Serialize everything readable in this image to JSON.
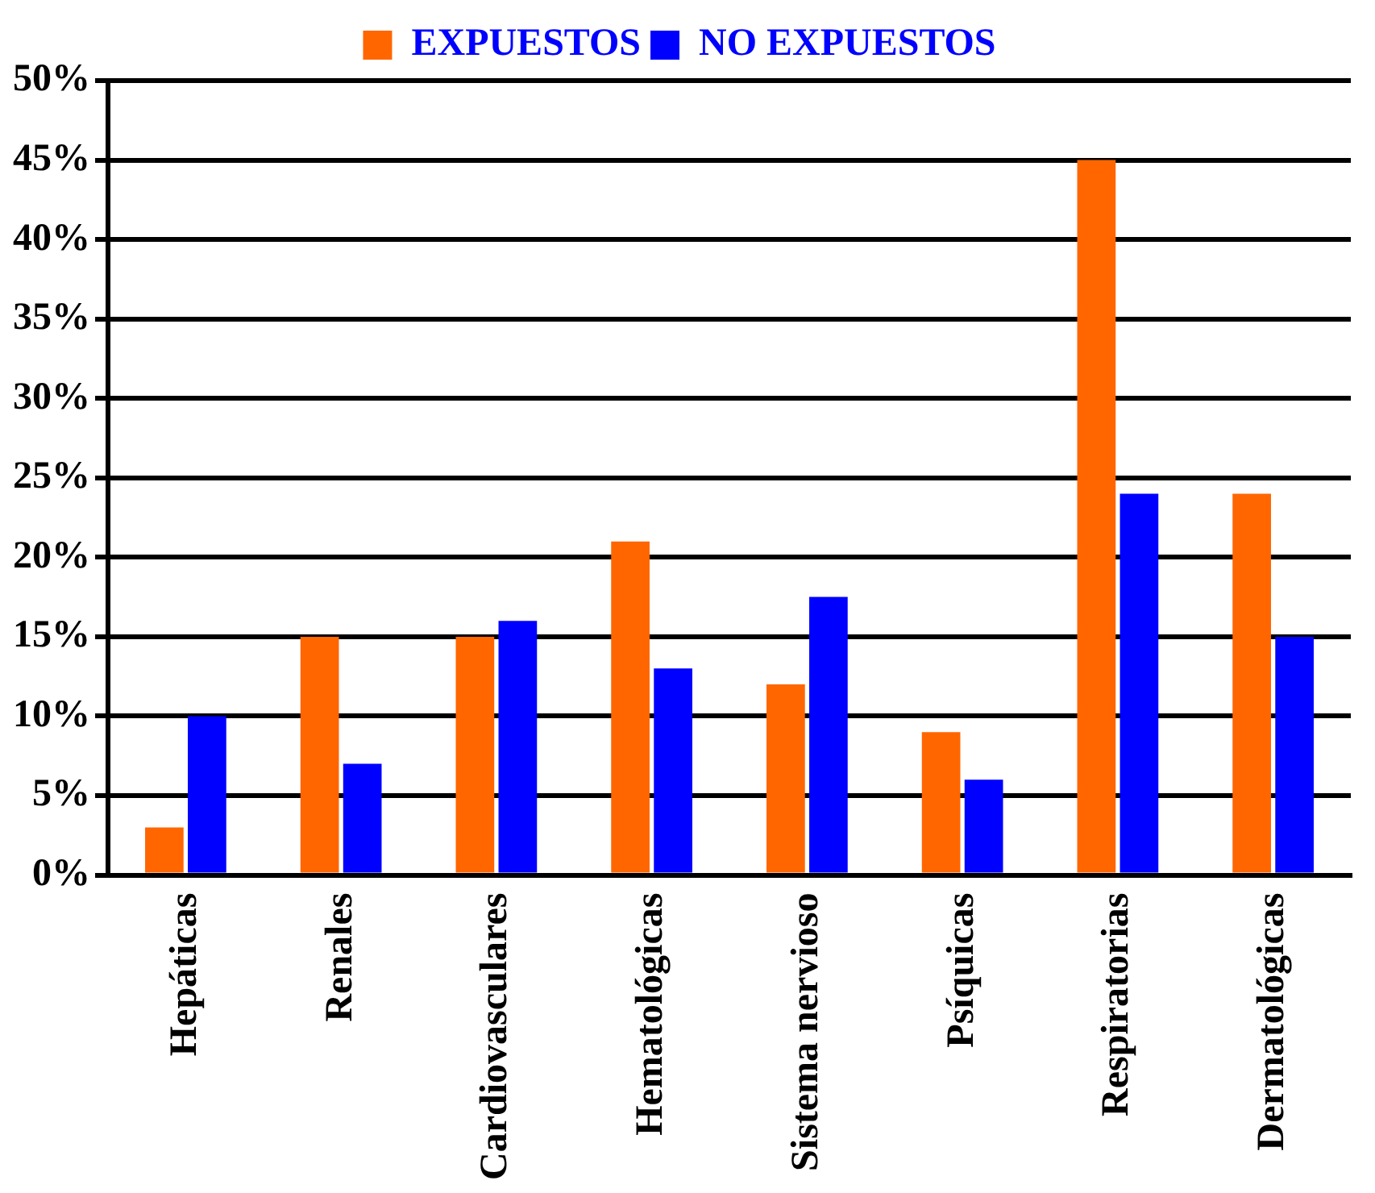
{
  "chart_data": {
    "type": "bar",
    "categories": [
      "Hepáticas",
      "Renales",
      "Cardiovasculares",
      "Hematológicas",
      "Sistema nervioso",
      "Psíquicas",
      "Respiratorias",
      "Dermatológicas"
    ],
    "series": [
      {
        "name": "EXPUESTOS",
        "color": "#ff6600",
        "values": [
          3,
          15,
          15,
          21,
          12,
          9,
          45,
          24
        ]
      },
      {
        "name": "NO EXPUESTOS",
        "color": "#0000ff",
        "values": [
          10,
          7,
          16,
          13,
          17.5,
          6,
          24,
          15
        ]
      }
    ],
    "ylim": [
      0,
      50
    ],
    "yticks": [
      {
        "value": 0,
        "label": "0%"
      },
      {
        "value": 5,
        "label": "5%"
      },
      {
        "value": 10,
        "label": "10%"
      },
      {
        "value": 15,
        "label": "15%"
      },
      {
        "value": 20,
        "label": "20%"
      },
      {
        "value": 25,
        "label": "25%"
      },
      {
        "value": 30,
        "label": "30%"
      },
      {
        "value": 35,
        "label": "35%"
      },
      {
        "value": 40,
        "label": "40%"
      },
      {
        "value": 45,
        "label": "45%"
      },
      {
        "value": 50,
        "label": "50%"
      }
    ],
    "grid": "y",
    "legend": "top"
  }
}
